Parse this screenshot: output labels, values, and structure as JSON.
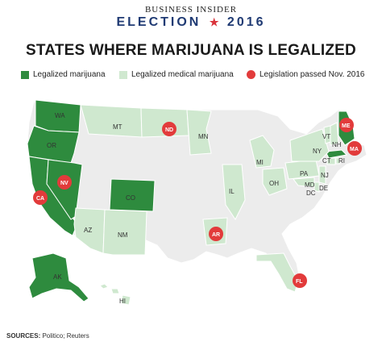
{
  "header": {
    "brand": "BUSINESS INSIDER",
    "election_left": "ELECTION",
    "election_right": "2016",
    "star": "★"
  },
  "title": "STATES WHERE MARIJUANA IS LEGALIZED",
  "legend": {
    "recreational": "Legalized marijuana",
    "medical": "Legalized medical marijuana",
    "passed": "Legislation passed Nov. 2016"
  },
  "colors": {
    "recreational": "#2e8b3e",
    "medical": "#cfe8cf",
    "none": "#ececec",
    "passed_marker": "#e23b3b",
    "border": "#ffffff"
  },
  "labels": {
    "WA": "WA",
    "OR": "OR",
    "CA": "CA",
    "NV": "NV",
    "AK": "AK",
    "HI": "HI",
    "MT": "MT",
    "ND": "ND",
    "MN": "MN",
    "CO": "CO",
    "AZ": "AZ",
    "NM": "NM",
    "AR": "AR",
    "IL": "IL",
    "MI": "MI",
    "OH": "OH",
    "PA": "PA",
    "NY": "NY",
    "VT": "VT",
    "NH": "NH",
    "ME": "ME",
    "MA": "MA",
    "CT": "CT",
    "RI": "RI",
    "NJ": "NJ",
    "DE": "DE",
    "MD": "MD",
    "DC": "DC",
    "FL": "FL"
  },
  "sources": {
    "label": "SOURCES:",
    "text": "Politico; Reuters"
  }
}
